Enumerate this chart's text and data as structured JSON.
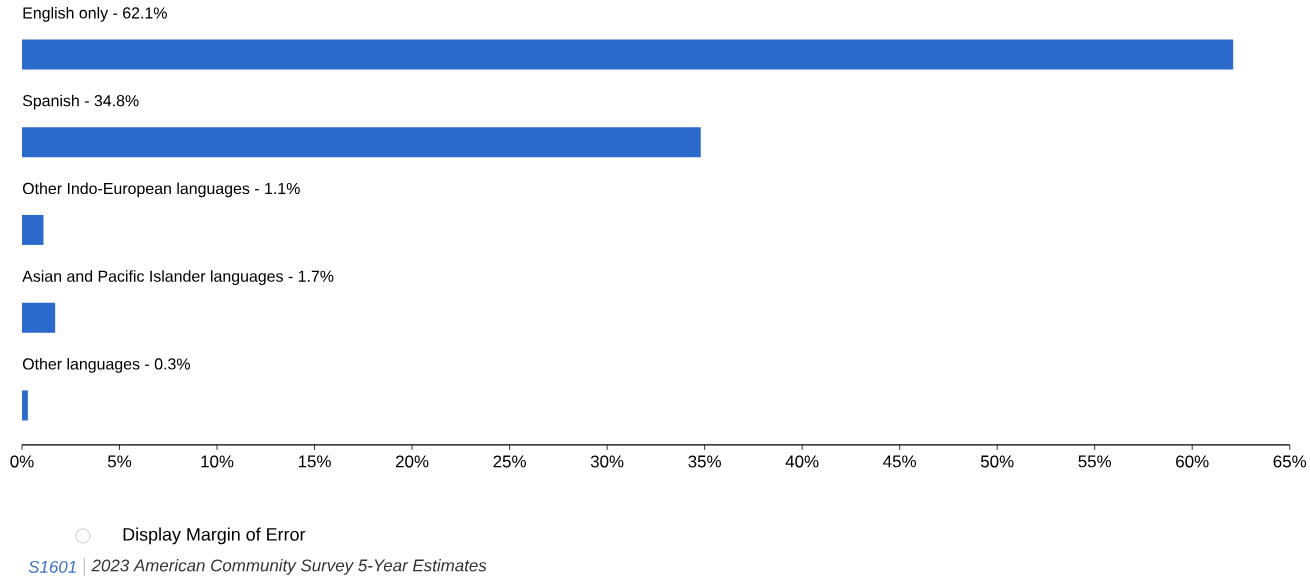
{
  "chart_data": {
    "type": "bar",
    "orientation": "horizontal",
    "categories": [
      "English only - 62.1%",
      "Spanish - 34.8%",
      "Other Indo-European languages - 1.1%",
      "Asian and Pacific Islander languages - 1.7%",
      "Other languages - 0.3%"
    ],
    "values": [
      62.1,
      34.8,
      1.1,
      1.7,
      0.3
    ],
    "color": "#2a6acb",
    "xlim": [
      0,
      65
    ],
    "xticks": [
      {
        "value": 0,
        "label": "0%"
      },
      {
        "value": 5,
        "label": "5%"
      },
      {
        "value": 10,
        "label": "10%"
      },
      {
        "value": 15,
        "label": "15%"
      },
      {
        "value": 20,
        "label": "20%"
      },
      {
        "value": 25,
        "label": "25%"
      },
      {
        "value": 30,
        "label": "30%"
      },
      {
        "value": 35,
        "label": "35%"
      },
      {
        "value": 40,
        "label": "40%"
      },
      {
        "value": 45,
        "label": "45%"
      },
      {
        "value": 50,
        "label": "50%"
      },
      {
        "value": 55,
        "label": "55%"
      },
      {
        "value": 60,
        "label": "60%"
      },
      {
        "value": 65,
        "label": "65%"
      }
    ],
    "annotations": [
      "Display Margin of Error",
      "S1601",
      "2023 American Community Survey 5-Year Estimates"
    ]
  }
}
